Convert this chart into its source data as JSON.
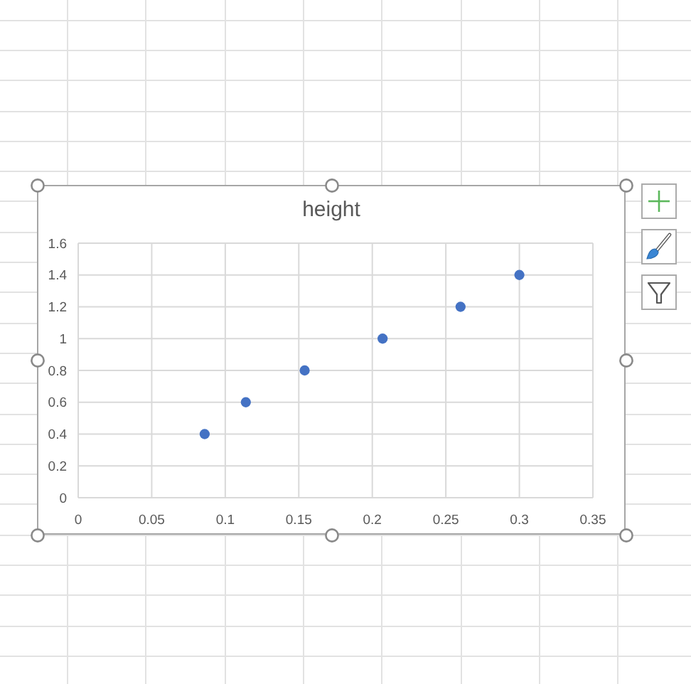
{
  "chart_data": {
    "type": "scatter",
    "title": "height",
    "x": [
      0.086,
      0.114,
      0.154,
      0.207,
      0.26,
      0.3
    ],
    "values": [
      0.4,
      0.6,
      0.8,
      1,
      1.2,
      1.4
    ],
    "color": "#4472c4",
    "xlim": [
      0,
      0.35
    ],
    "xticks": [
      0,
      0.05,
      0.1,
      0.15,
      0.2,
      0.25,
      0.3,
      0.35
    ],
    "ylim": [
      0,
      1.6
    ],
    "yticks": [
      0,
      0.2,
      0.4,
      0.6,
      0.8,
      1,
      1.2,
      1.4,
      1.6
    ],
    "grid": true,
    "marker": "circle"
  }
}
